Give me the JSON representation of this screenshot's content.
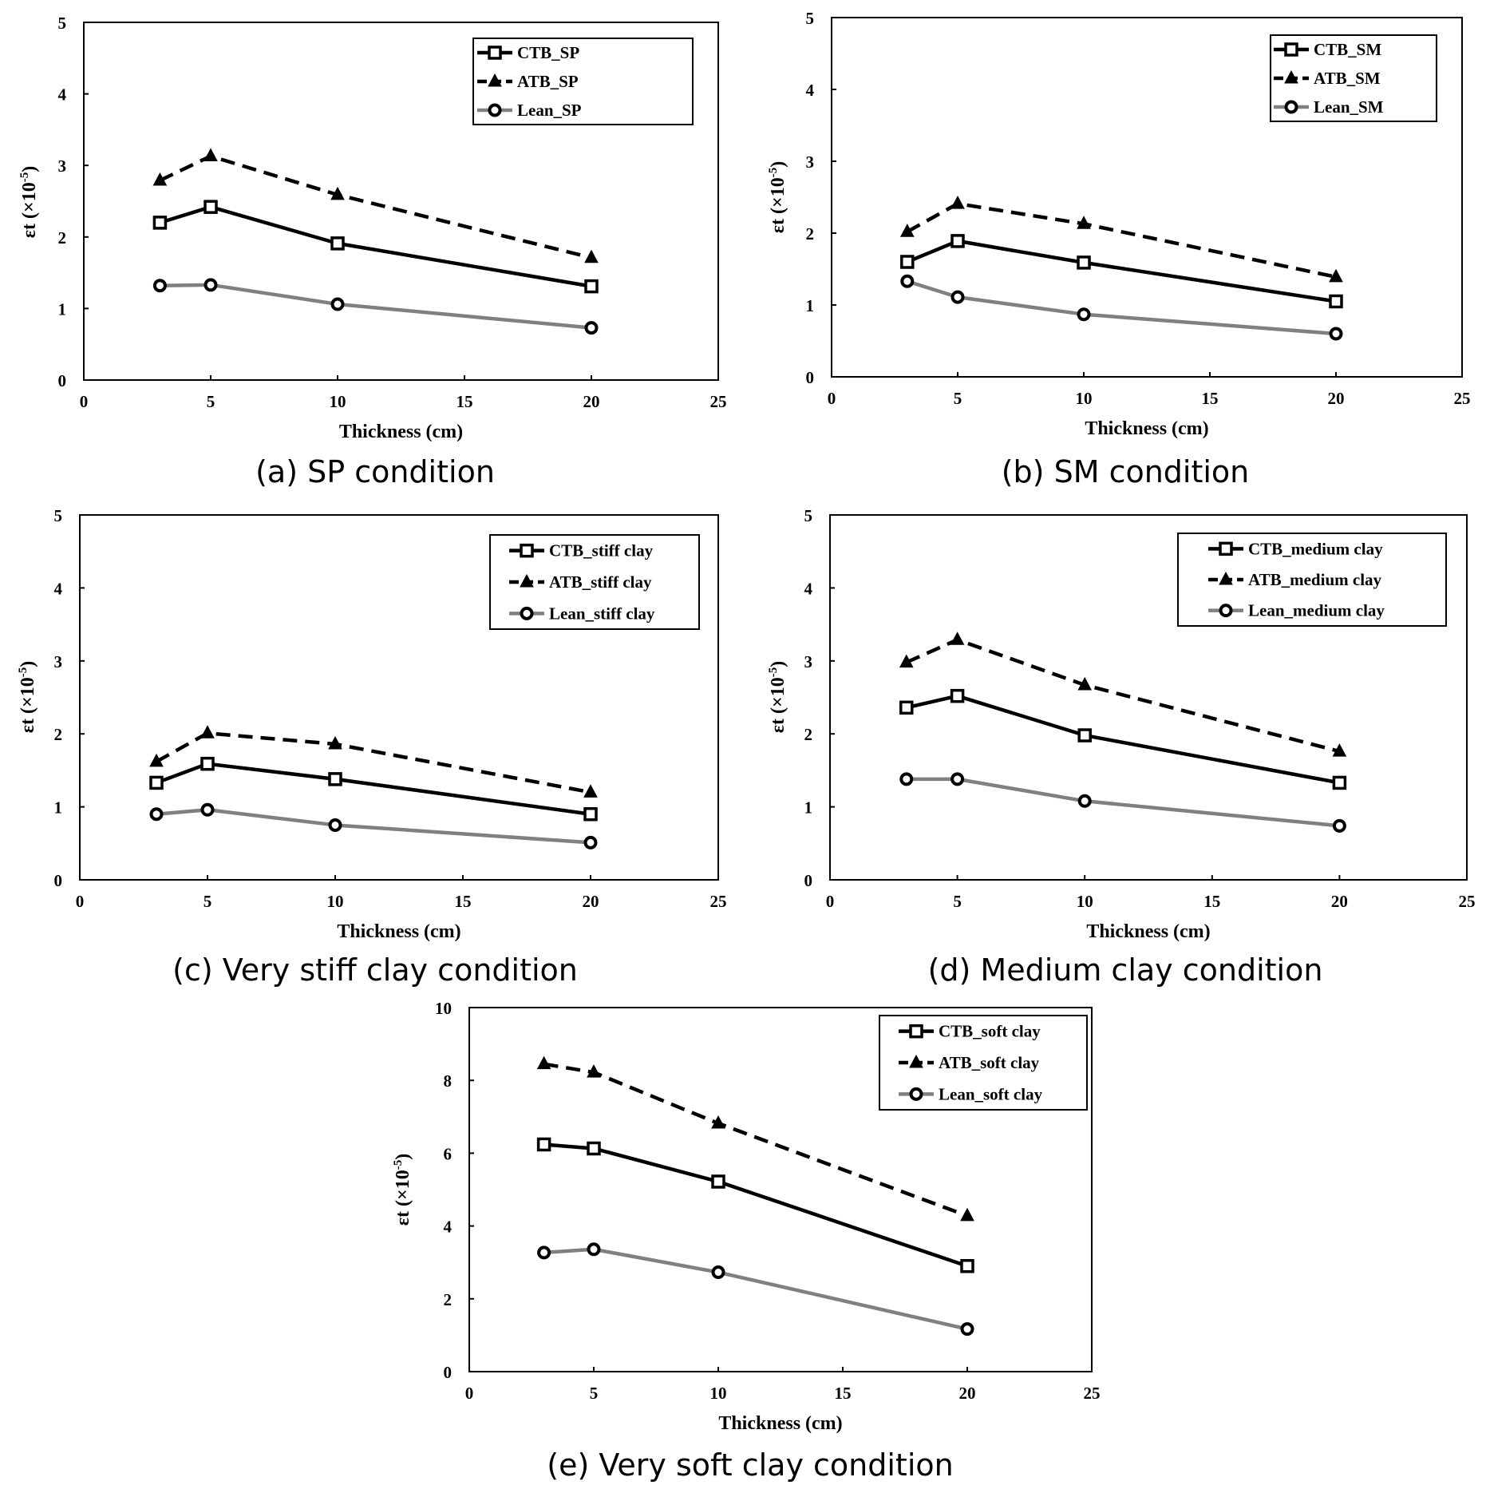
{
  "chart_data": [
    {
      "id": "a",
      "type": "line",
      "caption": "(a) SP condition",
      "xlabel": "Thickness  (cm)",
      "ylabel": "εt (×10-5)",
      "xlim": [
        0,
        25
      ],
      "ylim": [
        0,
        5
      ],
      "xticks": [
        "0",
        "5",
        "10",
        "15",
        "20",
        "25"
      ],
      "yticks": [
        "0",
        "1",
        "2",
        "3",
        "4",
        "5"
      ],
      "x": [
        3,
        5,
        10,
        20
      ],
      "legend_position": "top-right",
      "series": [
        {
          "name": "CTB_SP",
          "style": "solid",
          "marker": "square",
          "color": "#000000",
          "values": [
            2.2,
            2.42,
            1.91,
            1.31
          ]
        },
        {
          "name": "ATB_SP",
          "style": "dashed",
          "marker": "triangle",
          "color": "#000000",
          "values": [
            2.79,
            3.13,
            2.59,
            1.71
          ]
        },
        {
          "name": "Lean_SP",
          "style": "solid",
          "marker": "circle",
          "color": "#808080",
          "values": [
            1.32,
            1.33,
            1.06,
            0.73
          ]
        }
      ]
    },
    {
      "id": "b",
      "type": "line",
      "caption": "(b) SM condition",
      "xlabel": "Thickness  (cm)",
      "ylabel": "εt (×10-5)",
      "xlim": [
        0,
        25
      ],
      "ylim": [
        0,
        5
      ],
      "xticks": [
        "0",
        "5",
        "10",
        "15",
        "20",
        "25"
      ],
      "yticks": [
        "0",
        "1",
        "2",
        "3",
        "4",
        "5"
      ],
      "x": [
        3,
        5,
        10,
        20
      ],
      "legend_position": "top-right",
      "series": [
        {
          "name": "CTB_SM",
          "style": "solid",
          "marker": "square",
          "color": "#000000",
          "values": [
            1.6,
            1.89,
            1.59,
            1.05
          ]
        },
        {
          "name": "ATB_SM",
          "style": "dashed",
          "marker": "triangle",
          "color": "#000000",
          "values": [
            2.02,
            2.41,
            2.13,
            1.39
          ]
        },
        {
          "name": "Lean_SM",
          "style": "solid",
          "marker": "circle",
          "color": "#808080",
          "values": [
            1.33,
            1.11,
            0.87,
            0.6
          ]
        }
      ]
    },
    {
      "id": "c",
      "type": "line",
      "caption": "(c) Very stiff clay condition",
      "xlabel": "Thickness  (cm)",
      "ylabel": "εt (×10-5)",
      "xlim": [
        0,
        25
      ],
      "ylim": [
        0,
        5
      ],
      "xticks": [
        "0",
        "5",
        "10",
        "15",
        "20",
        "25"
      ],
      "yticks": [
        "0",
        "1",
        "2",
        "3",
        "4",
        "5"
      ],
      "x": [
        3,
        5,
        10,
        20
      ],
      "legend_position": "top-right",
      "series": [
        {
          "name": "CTB_stiff clay",
          "style": "solid",
          "marker": "square",
          "color": "#000000",
          "values": [
            1.33,
            1.59,
            1.38,
            0.9
          ]
        },
        {
          "name": "ATB_stiff clay",
          "style": "dashed",
          "marker": "triangle",
          "color": "#000000",
          "values": [
            1.62,
            2.01,
            1.86,
            1.2
          ]
        },
        {
          "name": "Lean_stiff clay",
          "style": "solid",
          "marker": "circle",
          "color": "#808080",
          "values": [
            0.9,
            0.96,
            0.75,
            0.51
          ]
        }
      ]
    },
    {
      "id": "d",
      "type": "line",
      "caption": "(d) Medium clay condition",
      "xlabel": "Thickness  (cm)",
      "ylabel": "εt (×10-5)",
      "xlim": [
        0,
        25
      ],
      "ylim": [
        0,
        5
      ],
      "xticks": [
        "0",
        "5",
        "10",
        "15",
        "20",
        "25"
      ],
      "yticks": [
        "0",
        "1",
        "2",
        "3",
        "4",
        "5"
      ],
      "x": [
        3,
        5,
        10,
        20
      ],
      "legend_position": "top-right",
      "series": [
        {
          "name": "CTB_medium clay",
          "style": "solid",
          "marker": "square",
          "color": "#000000",
          "values": [
            2.36,
            2.52,
            1.98,
            1.33
          ]
        },
        {
          "name": "ATB_medium clay",
          "style": "dashed",
          "marker": "triangle",
          "color": "#000000",
          "values": [
            2.98,
            3.29,
            2.67,
            1.76
          ]
        },
        {
          "name": "Lean_medium clay",
          "style": "solid",
          "marker": "circle",
          "color": "#808080",
          "values": [
            1.38,
            1.38,
            1.08,
            0.74
          ]
        }
      ]
    },
    {
      "id": "e",
      "type": "line",
      "caption": "(e) Very soft clay condition",
      "xlabel": "Thickness  (cm)",
      "ylabel": "εt (×10-5)",
      "xlim": [
        0,
        25
      ],
      "ylim": [
        0,
        10
      ],
      "xticks": [
        "0",
        "5",
        "10",
        "15",
        "20",
        "25"
      ],
      "yticks": [
        "0",
        "2",
        "4",
        "6",
        "8",
        "10"
      ],
      "x": [
        3,
        5,
        10,
        20
      ],
      "legend_position": "top-right",
      "series": [
        {
          "name": "CTB_soft clay",
          "style": "solid",
          "marker": "square",
          "color": "#000000",
          "values": [
            6.24,
            6.13,
            5.22,
            2.9
          ]
        },
        {
          "name": "ATB_soft clay",
          "style": "dashed",
          "marker": "triangle",
          "color": "#000000",
          "values": [
            8.45,
            8.22,
            6.82,
            4.28
          ]
        },
        {
          "name": "Lean_soft clay",
          "style": "solid",
          "marker": "circle",
          "color": "#808080",
          "values": [
            3.27,
            3.36,
            2.73,
            1.17
          ]
        }
      ]
    }
  ]
}
